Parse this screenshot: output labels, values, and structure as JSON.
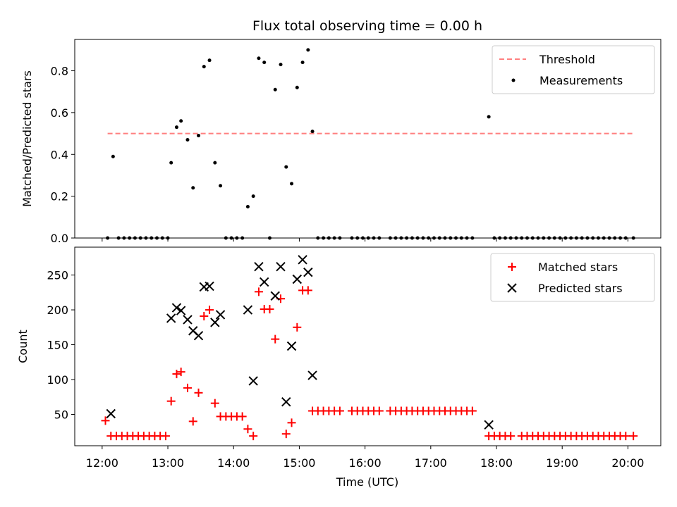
{
  "chart_data": [
    {
      "type": "scatter",
      "title": "Flux total observing time = 0.00 h",
      "xlabel": "",
      "ylabel": "Matched/Predicted stars",
      "ylim": [
        0,
        0.95
      ],
      "yticks": [
        "0.0",
        "0.2",
        "0.4",
        "0.6",
        "0.8"
      ],
      "grid": false,
      "legend_position": "top-right",
      "threshold": {
        "name": "Threshold",
        "value": 0.5,
        "x_start": "12:05",
        "x_end": "20:05",
        "color": "#ff8080"
      },
      "series": [
        {
          "name": "Measurements",
          "color": "#000000",
          "points": [
            [
              "12:05",
              0.0
            ],
            [
              "12:10",
              0.39
            ],
            [
              "12:15",
              0.0
            ],
            [
              "12:20",
              0.0
            ],
            [
              "12:25",
              0.0
            ],
            [
              "12:30",
              0.0
            ],
            [
              "12:35",
              0.0
            ],
            [
              "12:40",
              0.0
            ],
            [
              "12:45",
              0.0
            ],
            [
              "12:50",
              0.0
            ],
            [
              "12:55",
              0.0
            ],
            [
              "13:00",
              0.0
            ],
            [
              "13:03",
              0.36
            ],
            [
              "13:08",
              0.53
            ],
            [
              "13:12",
              0.56
            ],
            [
              "13:18",
              0.47
            ],
            [
              "13:23",
              0.24
            ],
            [
              "13:28",
              0.49
            ],
            [
              "13:33",
              0.82
            ],
            [
              "13:38",
              0.85
            ],
            [
              "13:43",
              0.36
            ],
            [
              "13:48",
              0.25
            ],
            [
              "13:53",
              0.0
            ],
            [
              "13:58",
              0.0
            ],
            [
              "14:03",
              0.0
            ],
            [
              "14:08",
              0.0
            ],
            [
              "14:13",
              0.15
            ],
            [
              "14:18",
              0.2
            ],
            [
              "14:23",
              0.86
            ],
            [
              "14:28",
              0.84
            ],
            [
              "14:33",
              0.0
            ],
            [
              "14:38",
              0.71
            ],
            [
              "14:43",
              0.83
            ],
            [
              "14:48",
              0.34
            ],
            [
              "14:53",
              0.26
            ],
            [
              "14:58",
              0.72
            ],
            [
              "15:03",
              0.84
            ],
            [
              "15:08",
              0.9
            ],
            [
              "15:12",
              0.51
            ],
            [
              "15:17",
              0.0
            ],
            [
              "15:22",
              0.0
            ],
            [
              "15:27",
              0.0
            ],
            [
              "15:32",
              0.0
            ],
            [
              "15:37",
              0.0
            ],
            [
              "15:48",
              0.0
            ],
            [
              "15:53",
              0.0
            ],
            [
              "15:58",
              0.0
            ],
            [
              "16:03",
              0.0
            ],
            [
              "16:08",
              0.0
            ],
            [
              "16:13",
              0.0
            ],
            [
              "16:23",
              0.0
            ],
            [
              "16:28",
              0.0
            ],
            [
              "16:33",
              0.0
            ],
            [
              "16:38",
              0.0
            ],
            [
              "16:43",
              0.0
            ],
            [
              "16:48",
              0.0
            ],
            [
              "16:53",
              0.0
            ],
            [
              "16:58",
              0.0
            ],
            [
              "17:03",
              0.0
            ],
            [
              "17:08",
              0.0
            ],
            [
              "17:13",
              0.0
            ],
            [
              "17:18",
              0.0
            ],
            [
              "17:23",
              0.0
            ],
            [
              "17:28",
              0.0
            ],
            [
              "17:33",
              0.0
            ],
            [
              "17:38",
              0.0
            ],
            [
              "17:53",
              0.58
            ],
            [
              "17:58",
              0.0
            ],
            [
              "18:03",
              0.0
            ],
            [
              "18:08",
              0.0
            ],
            [
              "18:13",
              0.0
            ],
            [
              "18:18",
              0.0
            ],
            [
              "18:23",
              0.0
            ],
            [
              "18:28",
              0.0
            ],
            [
              "18:33",
              0.0
            ],
            [
              "18:38",
              0.0
            ],
            [
              "18:43",
              0.0
            ],
            [
              "18:48",
              0.0
            ],
            [
              "18:53",
              0.0
            ],
            [
              "18:58",
              0.0
            ],
            [
              "19:03",
              0.0
            ],
            [
              "19:08",
              0.0
            ],
            [
              "19:13",
              0.0
            ],
            [
              "19:18",
              0.0
            ],
            [
              "19:23",
              0.0
            ],
            [
              "19:28",
              0.0
            ],
            [
              "19:33",
              0.0
            ],
            [
              "19:38",
              0.0
            ],
            [
              "19:43",
              0.0
            ],
            [
              "19:48",
              0.0
            ],
            [
              "19:53",
              0.0
            ],
            [
              "19:58",
              0.0
            ],
            [
              "20:05",
              0.0
            ]
          ]
        }
      ]
    },
    {
      "type": "scatter",
      "title": "",
      "xlabel": "Time (UTC)",
      "ylabel": "Count",
      "ylim": [
        5,
        290
      ],
      "yticks": [
        "50",
        "100",
        "150",
        "200",
        "250"
      ],
      "xlim": [
        "11:35",
        "20:30"
      ],
      "xticks": [
        "12:00",
        "13:00",
        "14:00",
        "15:00",
        "16:00",
        "17:00",
        "18:00",
        "19:00",
        "20:00"
      ],
      "grid": false,
      "legend_position": "top-right",
      "series": [
        {
          "name": "Matched stars",
          "marker": "plus",
          "color": "#ff0000",
          "points": [
            [
              "12:03",
              41
            ],
            [
              "12:08",
              19
            ],
            [
              "12:13",
              19
            ],
            [
              "12:18",
              19
            ],
            [
              "12:23",
              19
            ],
            [
              "12:28",
              19
            ],
            [
              "12:33",
              19
            ],
            [
              "12:38",
              19
            ],
            [
              "12:43",
              19
            ],
            [
              "12:48",
              19
            ],
            [
              "12:53",
              19
            ],
            [
              "12:58",
              19
            ],
            [
              "13:03",
              69
            ],
            [
              "13:08",
              108
            ],
            [
              "13:12",
              111
            ],
            [
              "13:18",
              88
            ],
            [
              "13:23",
              40
            ],
            [
              "13:28",
              81
            ],
            [
              "13:33",
              191
            ],
            [
              "13:38",
              200
            ],
            [
              "13:43",
              66
            ],
            [
              "13:48",
              47
            ],
            [
              "13:53",
              47
            ],
            [
              "13:58",
              47
            ],
            [
              "14:03",
              47
            ],
            [
              "14:08",
              47
            ],
            [
              "14:13",
              29
            ],
            [
              "14:18",
              19
            ],
            [
              "14:23",
              226
            ],
            [
              "14:28",
              201
            ],
            [
              "14:33",
              201
            ],
            [
              "14:38",
              158
            ],
            [
              "14:43",
              216
            ],
            [
              "14:48",
              22
            ],
            [
              "14:53",
              38
            ],
            [
              "14:58",
              175
            ],
            [
              "15:03",
              228
            ],
            [
              "15:08",
              228
            ],
            [
              "15:12",
              55
            ],
            [
              "15:17",
              55
            ],
            [
              "15:22",
              55
            ],
            [
              "15:27",
              55
            ],
            [
              "15:32",
              55
            ],
            [
              "15:37",
              55
            ],
            [
              "15:48",
              55
            ],
            [
              "15:53",
              55
            ],
            [
              "15:58",
              55
            ],
            [
              "16:03",
              55
            ],
            [
              "16:08",
              55
            ],
            [
              "16:13",
              55
            ],
            [
              "16:23",
              55
            ],
            [
              "16:28",
              55
            ],
            [
              "16:33",
              55
            ],
            [
              "16:38",
              55
            ],
            [
              "16:43",
              55
            ],
            [
              "16:48",
              55
            ],
            [
              "16:53",
              55
            ],
            [
              "16:58",
              55
            ],
            [
              "17:03",
              55
            ],
            [
              "17:08",
              55
            ],
            [
              "17:13",
              55
            ],
            [
              "17:18",
              55
            ],
            [
              "17:23",
              55
            ],
            [
              "17:28",
              55
            ],
            [
              "17:33",
              55
            ],
            [
              "17:38",
              55
            ],
            [
              "17:53",
              19
            ],
            [
              "17:58",
              19
            ],
            [
              "18:03",
              19
            ],
            [
              "18:08",
              19
            ],
            [
              "18:13",
              19
            ],
            [
              "18:23",
              19
            ],
            [
              "18:28",
              19
            ],
            [
              "18:33",
              19
            ],
            [
              "18:38",
              19
            ],
            [
              "18:43",
              19
            ],
            [
              "18:48",
              19
            ],
            [
              "18:53",
              19
            ],
            [
              "18:58",
              19
            ],
            [
              "19:03",
              19
            ],
            [
              "19:08",
              19
            ],
            [
              "19:13",
              19
            ],
            [
              "19:18",
              19
            ],
            [
              "19:23",
              19
            ],
            [
              "19:28",
              19
            ],
            [
              "19:33",
              19
            ],
            [
              "19:38",
              19
            ],
            [
              "19:43",
              19
            ],
            [
              "19:48",
              19
            ],
            [
              "19:53",
              19
            ],
            [
              "19:58",
              19
            ],
            [
              "20:05",
              19
            ]
          ]
        },
        {
          "name": "Predicted stars",
          "marker": "x",
          "color": "#000000",
          "points": [
            [
              "12:08",
              51
            ],
            [
              "13:03",
              188
            ],
            [
              "13:08",
              203
            ],
            [
              "13:12",
              199
            ],
            [
              "13:18",
              186
            ],
            [
              "13:23",
              170
            ],
            [
              "13:28",
              163
            ],
            [
              "13:33",
              233
            ],
            [
              "13:38",
              234
            ],
            [
              "13:43",
              182
            ],
            [
              "13:48",
              193
            ],
            [
              "14:13",
              200
            ],
            [
              "14:18",
              98
            ],
            [
              "14:23",
              262
            ],
            [
              "14:28",
              240
            ],
            [
              "14:38",
              220
            ],
            [
              "14:43",
              262
            ],
            [
              "14:48",
              68
            ],
            [
              "14:53",
              148
            ],
            [
              "14:58",
              244
            ],
            [
              "15:03",
              272
            ],
            [
              "15:08",
              254
            ],
            [
              "15:12",
              106
            ],
            [
              "17:53",
              35
            ]
          ]
        }
      ]
    }
  ]
}
